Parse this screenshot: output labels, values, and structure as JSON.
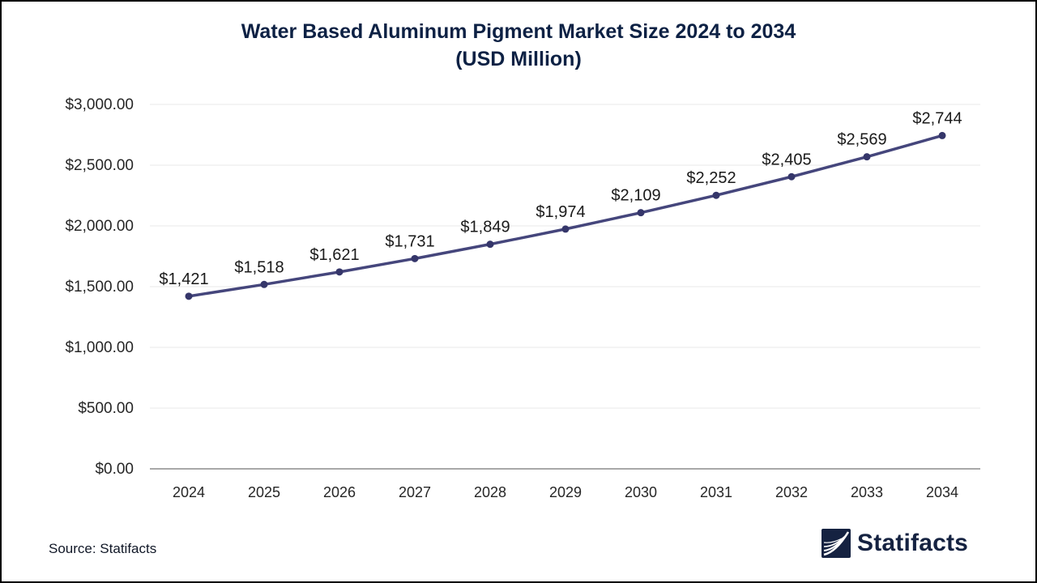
{
  "title": {
    "line1": "Water Based Aluminum Pigment Market Size 2024 to 2034",
    "line2": "(USD Million)"
  },
  "source": {
    "label": "Source: Statifacts"
  },
  "branding": {
    "logo_icon": "statifacts-waves-icon",
    "logo_text": "Statifacts"
  },
  "chart_data": {
    "type": "line",
    "title": "Water Based Aluminum Pigment Market Size 2024 to 2034 (USD Million)",
    "categories": [
      "2024",
      "2025",
      "2026",
      "2027",
      "2028",
      "2029",
      "2030",
      "2031",
      "2032",
      "2033",
      "2034"
    ],
    "series": [
      {
        "name": "Market Size (USD Million)",
        "values": [
          1421,
          1518,
          1621,
          1731,
          1849,
          1974,
          2109,
          2252,
          2405,
          2569,
          2744
        ]
      }
    ],
    "xlabel": "",
    "ylabel": "",
    "ylim": [
      0,
      3000
    ],
    "ytick_step": 500,
    "ytick_labels": [
      "$0.00",
      "$500.00",
      "$1,000.00",
      "$1,500.00",
      "$2,000.00",
      "$2,500.00",
      "$3,000.00"
    ],
    "point_labels": [
      "$1,421",
      "$1,518",
      "$1,621",
      "$1,731",
      "$1,849",
      "$1,974",
      "$2,109",
      "$2,252",
      "$2,405",
      "$2,569",
      "$2,744"
    ],
    "grid": true,
    "legend": "none",
    "line_color": "#45467C",
    "marker_color": "#35366A",
    "label_color": "#1a1a1a",
    "gridline_color": "#e8e8e8",
    "axisline_color": "#a8a8a8",
    "tick_color": "#262626",
    "title_color": "#0d2144"
  }
}
